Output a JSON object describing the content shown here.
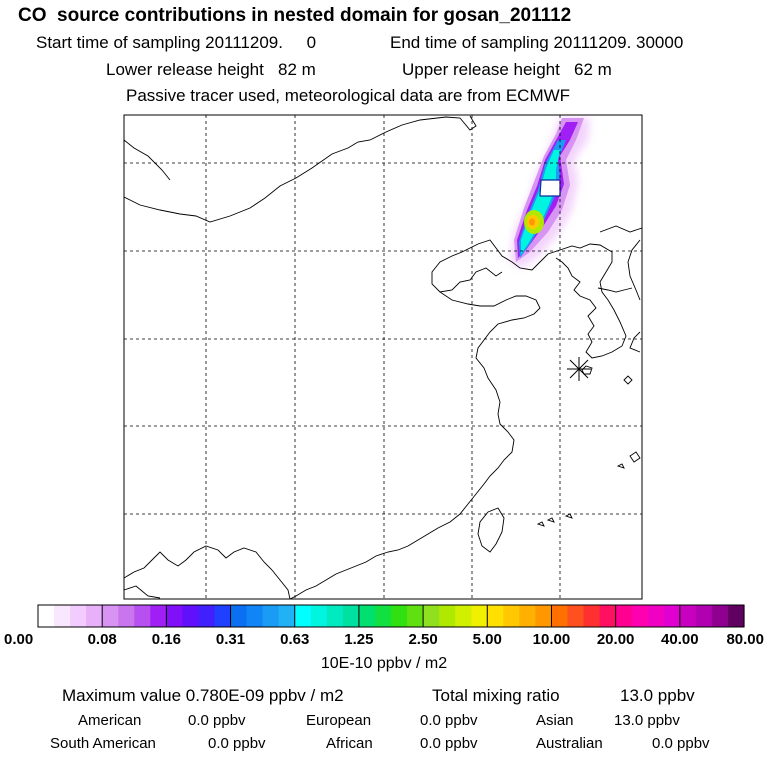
{
  "header": {
    "title": "CO  source contributions in nested domain for gosan_201112",
    "start_label": "Start time of sampling 20111209.     0",
    "end_label": "End time of sampling 20111209. 30000",
    "lower_label": "Lower release height   82 m",
    "upper_label": "Upper release height   62 m",
    "tracer_label": "Passive tracer used, meteorological data are from ECMWF"
  },
  "chart_data": {
    "type": "heatmap",
    "title": "CO  source contributions in nested domain for gosan_201112",
    "colorbar": {
      "ticks": [
        "0.00",
        "0.08",
        "0.16",
        "0.31",
        "0.63",
        "1.25",
        "2.50",
        "5.00",
        "10.00",
        "20.00",
        "40.00",
        "80.00"
      ],
      "units": "10E-10 ppbv / m2",
      "colors": [
        "#ffffff",
        "#f9e6ff",
        "#f2ccff",
        "#e9b0fa",
        "#d894f2",
        "#c975ee",
        "#b84ff0",
        "#a01ff5",
        "#8010f8",
        "#6010fa",
        "#4020fc",
        "#2040ff",
        "#0b6ff2",
        "#1085f5",
        "#1a9cf5",
        "#20b2f5",
        "#00ffff",
        "#00f5e0",
        "#00eac0",
        "#00e0a0",
        "#00e070",
        "#10e040",
        "#30e010",
        "#60e010",
        "#90e020",
        "#b0e800",
        "#d0f000",
        "#f0f000",
        "#ffe000",
        "#ffc800",
        "#ffb000",
        "#ff9800",
        "#ff7000",
        "#ff5020",
        "#ff3030",
        "#ff1060",
        "#ff0090",
        "#ff00b0",
        "#f000c0",
        "#e000d0",
        "#c800c0",
        "#b000b0",
        "#900090",
        "#600060"
      ]
    },
    "plume_cells": [
      {
        "lon": 124.6,
        "lat": 46.6,
        "level": 2
      },
      {
        "lon": 124.9,
        "lat": 46.4,
        "level": 4
      },
      {
        "lon": 124.1,
        "lat": 45.9,
        "level": 3
      },
      {
        "lon": 123.7,
        "lat": 45.0,
        "level": 5
      },
      {
        "lon": 124.2,
        "lat": 44.8,
        "level": 7
      },
      {
        "lon": 123.5,
        "lat": 43.5,
        "level": 6
      },
      {
        "lon": 123.1,
        "lat": 42.4,
        "level": 10
      },
      {
        "lon": 123.2,
        "lat": 42.0,
        "level": 16
      },
      {
        "lon": 122.8,
        "lat": 41.3,
        "level": 14
      },
      {
        "lon": 122.6,
        "lat": 40.8,
        "level": 17
      }
    ],
    "receptor": {
      "lon": 126.2,
      "lat": 33.3,
      "marker": "asterisk"
    }
  },
  "summary": {
    "max_label": "Maximum value  0.780E-09 ppbv / m2",
    "total_label": "Total mixing ratio",
    "total_value": "13.0 ppbv",
    "regions": [
      {
        "name": "American",
        "value": "0.0 ppbv"
      },
      {
        "name": "European",
        "value": "0.0 ppbv"
      },
      {
        "name": "Asian",
        "value": "13.0 ppbv"
      },
      {
        "name": "South American",
        "value": "0.0 ppbv"
      },
      {
        "name": "African",
        "value": "0.0 ppbv"
      },
      {
        "name": "Australian",
        "value": "0.0 ppbv"
      }
    ]
  }
}
